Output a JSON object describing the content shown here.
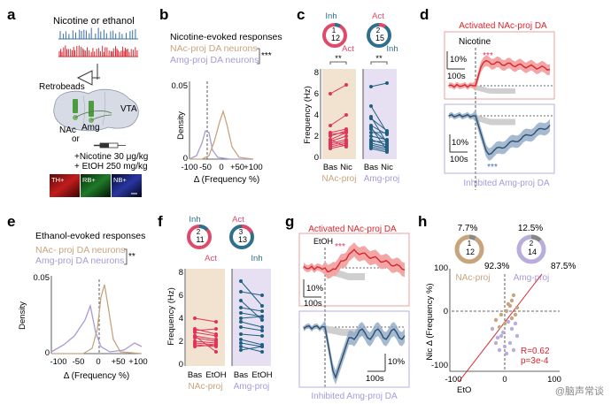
{
  "panels": {
    "a": {
      "label": "a",
      "title": "Nicotine or ethanol",
      "retrobeads": "Retrobeads",
      "nac": "NAc",
      "or": "or",
      "amg": "Amg",
      "vta": "VTA",
      "dose_nic": "+Nicotine 30 μg/kg",
      "dose_etoh": "+ EtOH 250 mg/kg",
      "micrograph_labels": [
        "TH+",
        "RB+",
        "NB+"
      ],
      "colors": {
        "blue_trace": "#3a6fa8",
        "red_trace": "#d9262e"
      }
    },
    "b": {
      "label": "b",
      "title": "Nicotine-evoked responses",
      "series": [
        {
          "name": "NAc-proj DA neurons",
          "color": "#c8a47e"
        },
        {
          "name": "Amg-proj DA neurons",
          "color": "#a99ad6"
        }
      ],
      "sig": "***",
      "ylabel": "Density",
      "xlabel": "Δ (Frequency %)",
      "yticks": [
        "0.05",
        "0"
      ],
      "xticks": [
        "-100",
        "-50",
        "0",
        "+50",
        "+100"
      ]
    },
    "c": {
      "label": "c",
      "ring_nac": {
        "top": "Inh",
        "num_a": "1",
        "num_b": "12",
        "bottom": "Act"
      },
      "ring_amg": {
        "top": "Act",
        "num_a": "2",
        "num_b": "15",
        "bottom": "Inh"
      },
      "ylabel": "Frequency (Hz)",
      "yticks": [
        "8",
        "6",
        "4",
        "2",
        "0"
      ],
      "sig_left": "**",
      "sig_right": "**",
      "xticks_left": [
        "Bas",
        "Nic"
      ],
      "xticks_right": [
        "Bas",
        "Nic"
      ],
      "group_left": "NAc-proj",
      "group_right": "Amg-proj"
    },
    "d": {
      "label": "d",
      "top_title": "Activated NAc-proj DA",
      "drug": "Nicotine",
      "sig_top": "***",
      "scale_y_top": "10%",
      "scale_x_top": "100s",
      "scale_y_bot": "10%",
      "scale_x_bot": "100s",
      "sig_bot": "***",
      "bottom_title": "Inhibited Amg-proj DA"
    },
    "e": {
      "label": "e",
      "title": "Ethanol-evoked responses",
      "series": [
        {
          "name": "NAc- proj DA neurons",
          "color": "#c8a47e"
        },
        {
          "name": "Amg-proj DA neurons",
          "color": "#a99ad6"
        }
      ],
      "sig": "**",
      "ylabel": "Density",
      "xlabel": "Δ (Frequency %)",
      "yticks": [
        "0.05",
        "0"
      ],
      "xticks": [
        "-100",
        "-50",
        "0",
        "+50",
        "+100"
      ]
    },
    "f": {
      "label": "f",
      "ring_nac": {
        "top": "Inh",
        "num_a": "2",
        "num_b": "11",
        "bottom": "Act"
      },
      "ring_amg": {
        "top": "Act",
        "num_a": "3",
        "num_b": "13",
        "bottom": "Inh"
      },
      "ylabel": "Frequency (Hz)",
      "yticks": [
        "8",
        "6",
        "4",
        "2",
        "0"
      ],
      "xticks_left": [
        "Bas",
        "EtOH"
      ],
      "xticks_right": [
        "Bas",
        "EtOH"
      ],
      "group_left": "NAc-proj",
      "group_right": "Amg-proj"
    },
    "g": {
      "label": "g",
      "top_title": "Activated NAc-proj DA",
      "drug": "EtOH",
      "sig_top": "***",
      "scale_y_top": "10%",
      "scale_x_top": "100s",
      "scale_y_bot": "10%",
      "scale_x_bot": "100s",
      "bottom_title": "Inhibited Amg-proj DA"
    },
    "h": {
      "label": "h",
      "ring_nac": {
        "pct_top": "7.7%",
        "num_a": "1",
        "num_b": "12",
        "pct_side": "92.3%",
        "name": "NAc-proj"
      },
      "ring_amg": {
        "pct_top": "12.5%",
        "num_a": "2",
        "num_b": "14",
        "pct_side": "87.5%",
        "name": "Amg-proj"
      },
      "ylabel": "Nic Δ (Frequency %)",
      "xlabel": "EtO",
      "yticks": [
        "100",
        "0",
        "-100"
      ],
      "xticks": [
        "-100",
        "0",
        "100"
      ],
      "stat_r": "R=0.62",
      "stat_p": "p=3e-4"
    }
  },
  "watermark": "@脑声常谈"
}
